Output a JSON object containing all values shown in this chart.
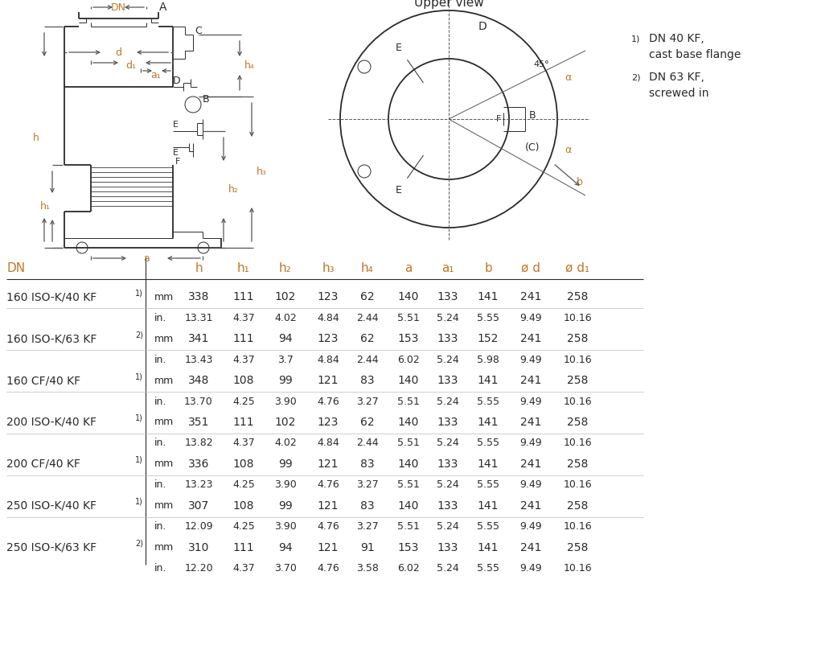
{
  "bg_color": "#ffffff",
  "dark": "#2a2a2a",
  "gray": "#555555",
  "orange": "#c07828",
  "rows": [
    [
      "160 ISO-K/40 KF",
      "1",
      "mm",
      "338",
      "111",
      "102",
      "123",
      "62",
      "140",
      "133",
      "141",
      "241",
      "258"
    ],
    [
      "",
      "",
      "in.",
      "13.31",
      "4.37",
      "4.02",
      "4.84",
      "2.44",
      "5.51",
      "5.24",
      "5.55",
      "9.49",
      "10.16"
    ],
    [
      "160 ISO-K/63 KF",
      "2",
      "mm",
      "341",
      "111",
      "94",
      "123",
      "62",
      "153",
      "133",
      "152",
      "241",
      "258"
    ],
    [
      "",
      "",
      "in.",
      "13.43",
      "4.37",
      "3.7",
      "4.84",
      "2.44",
      "6.02",
      "5.24",
      "5.98",
      "9.49",
      "10.16"
    ],
    [
      "160 CF/40 KF",
      "1",
      "mm",
      "348",
      "108",
      "99",
      "121",
      "83",
      "140",
      "133",
      "141",
      "241",
      "258"
    ],
    [
      "",
      "",
      "in.",
      "13.70",
      "4.25",
      "3.90",
      "4.76",
      "3.27",
      "5.51",
      "5.24",
      "5.55",
      "9.49",
      "10.16"
    ],
    [
      "200 ISO-K/40 KF",
      "1",
      "mm",
      "351",
      "111",
      "102",
      "123",
      "62",
      "140",
      "133",
      "141",
      "241",
      "258"
    ],
    [
      "",
      "",
      "in.",
      "13.82",
      "4.37",
      "4.02",
      "4.84",
      "2.44",
      "5.51",
      "5.24",
      "5.55",
      "9.49",
      "10.16"
    ],
    [
      "200 CF/40 KF",
      "1",
      "mm",
      "336",
      "108",
      "99",
      "121",
      "83",
      "140",
      "133",
      "141",
      "241",
      "258"
    ],
    [
      "",
      "",
      "in.",
      "13.23",
      "4.25",
      "3.90",
      "4.76",
      "3.27",
      "5.51",
      "5.24",
      "5.55",
      "9.49",
      "10.16"
    ],
    [
      "250 ISO-K/40 KF",
      "1",
      "mm",
      "307",
      "108",
      "99",
      "121",
      "83",
      "140",
      "133",
      "141",
      "241",
      "258"
    ],
    [
      "",
      "",
      "in.",
      "12.09",
      "4.25",
      "3.90",
      "4.76",
      "3.27",
      "5.51",
      "5.24",
      "5.55",
      "9.49",
      "10.16"
    ],
    [
      "250 ISO-K/63 KF",
      "2",
      "mm",
      "310",
      "111",
      "94",
      "121",
      "91",
      "153",
      "133",
      "141",
      "241",
      "258"
    ],
    [
      "",
      "",
      "in.",
      "12.20",
      "4.37",
      "3.70",
      "4.76",
      "3.58",
      "6.02",
      "5.24",
      "5.55",
      "9.49",
      "10.16"
    ]
  ],
  "col_headers": [
    "h",
    "h₁",
    "h₂",
    "h₃",
    "h₄",
    "a",
    "a₁",
    "b",
    "ø d",
    "ø d₁"
  ],
  "footnote1a": "DN 40 KF,",
  "footnote1b": "cast base flange",
  "footnote2a": "DN 63 KF,",
  "footnote2b": "screwed in"
}
